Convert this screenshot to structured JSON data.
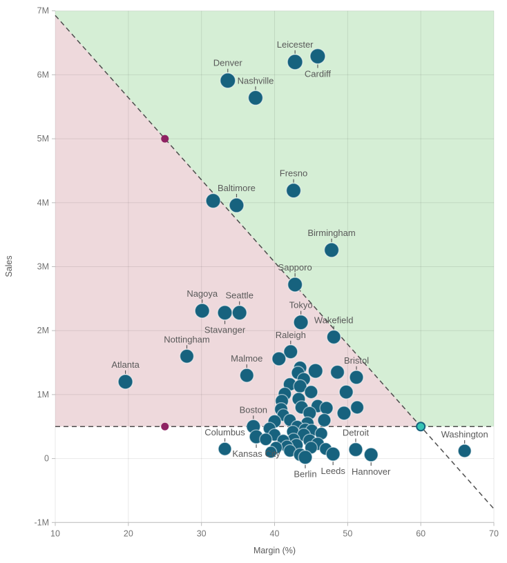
{
  "chart_data": {
    "type": "scatter",
    "title": "",
    "xlabel": "Margin (%)",
    "ylabel": "Sales",
    "xlim": [
      10,
      70
    ],
    "ylim": [
      -1,
      7
    ],
    "x_ticks": [
      10,
      20,
      30,
      40,
      50,
      60,
      70
    ],
    "y_ticks": [
      {
        "v": -1,
        "label": "-1M"
      },
      {
        "v": 0,
        "label": "0"
      },
      {
        "v": 1,
        "label": "1M"
      },
      {
        "v": 2,
        "label": "2M"
      },
      {
        "v": 3,
        "label": "3M"
      },
      {
        "v": 4,
        "label": "4M"
      },
      {
        "v": 5,
        "label": "5M"
      },
      {
        "v": 6,
        "label": "6M"
      },
      {
        "v": 7,
        "label": "7M"
      }
    ],
    "grid": true,
    "legend": "none",
    "regions": {
      "above_diagonal_color": "#d5eed5",
      "below_diagonal_color": "#eed9dc",
      "below_threshold_color": "#ffffff"
    },
    "reference_lines": {
      "diagonal_through": [
        {
          "x": 25,
          "y": 5
        },
        {
          "x": 60,
          "y": 0.5
        }
      ],
      "horizontal_y": 0.5,
      "style": "dashed",
      "color": "#4d4d4d"
    },
    "control_points": [
      {
        "x": 25,
        "y": 5,
        "color": "#8e2262",
        "name": "diagonal-handle"
      },
      {
        "x": 25,
        "y": 0.5,
        "color": "#8e2262",
        "name": "threshold-handle-left"
      },
      {
        "x": 60,
        "y": 0.5,
        "color": "#35c4b4",
        "name": "intersection-handle"
      }
    ],
    "points": [
      {
        "city": "Leicester",
        "x": 42.8,
        "y": 6.2,
        "r": 11,
        "label": "above"
      },
      {
        "city": "Cardiff",
        "x": 45.9,
        "y": 6.29,
        "r": 11,
        "label": "below"
      },
      {
        "city": "Denver",
        "x": 33.6,
        "y": 5.91,
        "r": 11,
        "label": "above"
      },
      {
        "city": "Nashville",
        "x": 37.4,
        "y": 5.64,
        "r": 10.5,
        "label": "above"
      },
      {
        "city": "Baltimore",
        "x": 34.8,
        "y": 3.96,
        "r": 10.5,
        "label": "above"
      },
      {
        "city": "Fresno",
        "x": 42.6,
        "y": 4.19,
        "r": 10.5,
        "label": "above"
      },
      {
        "city": "Birmingham",
        "x": 47.8,
        "y": 3.26,
        "r": 10.5,
        "label": "above"
      },
      {
        "city": "Sapporo",
        "x": 42.8,
        "y": 2.72,
        "r": 10.5,
        "label": "above"
      },
      {
        "city": "Nagoya",
        "x": 30.1,
        "y": 2.31,
        "r": 10.5,
        "label": "above"
      },
      {
        "city": "Stavanger",
        "x": 33.2,
        "y": 2.28,
        "r": 10.5,
        "label": "below"
      },
      {
        "city": "Seattle",
        "x": 35.2,
        "y": 2.28,
        "r": 10.5,
        "label": "above"
      },
      {
        "city": "Tokyo",
        "x": 43.6,
        "y": 2.13,
        "r": 10.5,
        "label": "above"
      },
      {
        "city": "Wakefield",
        "x": 48.1,
        "y": 1.9,
        "r": 10,
        "label": "above"
      },
      {
        "city": "Nottingham",
        "x": 28.0,
        "y": 1.6,
        "r": 10,
        "label": "above"
      },
      {
        "city": "Atlanta",
        "x": 19.6,
        "y": 1.2,
        "r": 10.5,
        "label": "above"
      },
      {
        "city": "Malmoe",
        "x": 36.2,
        "y": 1.3,
        "r": 10,
        "label": "above"
      },
      {
        "city": "Raleigh",
        "x": 42.2,
        "y": 1.67,
        "r": 10,
        "label": "above"
      },
      {
        "city": "Bristol",
        "x": 51.2,
        "y": 1.27,
        "r": 10,
        "label": "above"
      },
      {
        "city": "Boston",
        "x": 37.1,
        "y": 0.5,
        "r": 10,
        "label": "above"
      },
      {
        "city": "Columbus",
        "x": 33.2,
        "y": 0.15,
        "r": 9.5,
        "label": "above"
      },
      {
        "city": "Kansas City",
        "x": 37.5,
        "y": 0.34,
        "r": 10,
        "label": "below"
      },
      {
        "city": "Berlin",
        "x": 44.2,
        "y": 0.02,
        "r": 10,
        "label": "below"
      },
      {
        "city": "Leeds",
        "x": 48.0,
        "y": 0.07,
        "r": 10,
        "label": "below"
      },
      {
        "city": "Detroit",
        "x": 51.1,
        "y": 0.14,
        "r": 10,
        "label": "above"
      },
      {
        "city": "Hannover",
        "x": 53.2,
        "y": 0.06,
        "r": 10,
        "label": "below"
      },
      {
        "city": "Washington",
        "x": 66.0,
        "y": 0.12,
        "r": 9.5,
        "label": "above"
      },
      {
        "x": 31.6,
        "y": 4.03,
        "r": 10.5
      },
      {
        "x": 40.6,
        "y": 1.56,
        "r": 10
      },
      {
        "x": 43.2,
        "y": 1.34,
        "r": 9.5
      },
      {
        "x": 43.5,
        "y": 1.42,
        "r": 9.5
      },
      {
        "x": 45.6,
        "y": 1.37,
        "r": 10.5
      },
      {
        "x": 48.6,
        "y": 1.35,
        "r": 10
      },
      {
        "x": 44.0,
        "y": 1.24,
        "r": 9.5
      },
      {
        "x": 42.1,
        "y": 1.16,
        "r": 9.5
      },
      {
        "x": 43.5,
        "y": 1.13,
        "r": 9.5
      },
      {
        "x": 45.0,
        "y": 1.04,
        "r": 9.5
      },
      {
        "x": 49.8,
        "y": 1.04,
        "r": 10
      },
      {
        "x": 41.4,
        "y": 1.01,
        "r": 9.5
      },
      {
        "x": 41.0,
        "y": 0.9,
        "r": 9.5
      },
      {
        "x": 43.3,
        "y": 0.93,
        "r": 9.5
      },
      {
        "x": 45.9,
        "y": 0.82,
        "r": 9.5
      },
      {
        "x": 47.1,
        "y": 0.79,
        "r": 9.5
      },
      {
        "x": 51.3,
        "y": 0.8,
        "r": 9.5
      },
      {
        "x": 43.7,
        "y": 0.8,
        "r": 9.5
      },
      {
        "x": 40.9,
        "y": 0.77,
        "r": 9.5
      },
      {
        "x": 44.8,
        "y": 0.71,
        "r": 9.5
      },
      {
        "x": 49.5,
        "y": 0.71,
        "r": 10
      },
      {
        "x": 41.2,
        "y": 0.68,
        "r": 9
      },
      {
        "x": 42.1,
        "y": 0.6,
        "r": 9
      },
      {
        "x": 46.8,
        "y": 0.6,
        "r": 9.5
      },
      {
        "x": 44.5,
        "y": 0.55,
        "r": 9.5
      },
      {
        "x": 40.0,
        "y": 0.58,
        "r": 9.5
      },
      {
        "x": 43.1,
        "y": 0.5,
        "r": 9
      },
      {
        "x": 45.1,
        "y": 0.44,
        "r": 9
      },
      {
        "x": 39.3,
        "y": 0.47,
        "r": 9
      },
      {
        "x": 44.2,
        "y": 0.45,
        "r": 9.5
      },
      {
        "x": 42.5,
        "y": 0.42,
        "r": 9
      },
      {
        "x": 46.4,
        "y": 0.39,
        "r": 9
      },
      {
        "x": 44.0,
        "y": 0.37,
        "r": 9.5
      },
      {
        "x": 40.0,
        "y": 0.37,
        "r": 9
      },
      {
        "x": 42.6,
        "y": 0.3,
        "r": 9
      },
      {
        "x": 41.2,
        "y": 0.28,
        "r": 9
      },
      {
        "x": 44.8,
        "y": 0.28,
        "r": 9.5
      },
      {
        "x": 38.8,
        "y": 0.3,
        "r": 9
      },
      {
        "x": 45.9,
        "y": 0.23,
        "r": 9.5
      },
      {
        "x": 43.0,
        "y": 0.21,
        "r": 9.5
      },
      {
        "x": 41.7,
        "y": 0.19,
        "r": 9
      },
      {
        "x": 40.2,
        "y": 0.17,
        "r": 9
      },
      {
        "x": 45.0,
        "y": 0.17,
        "r": 9
      },
      {
        "x": 47.0,
        "y": 0.15,
        "r": 9
      },
      {
        "x": 42.1,
        "y": 0.12,
        "r": 9
      },
      {
        "x": 39.5,
        "y": 0.1,
        "r": 8.5
      },
      {
        "x": 43.5,
        "y": 0.06,
        "r": 9.5
      }
    ]
  },
  "colors": {
    "bubble": "#17627e",
    "bubble_stroke": "rgba(255,255,255,0.55)",
    "grid": "rgba(0,0,0,0.09)",
    "tick_text": "#737373",
    "label_text": "#595959",
    "axis_title": "#595959",
    "axis_line": "#bbbbbb",
    "dashed_line": "#4d4d4d"
  }
}
